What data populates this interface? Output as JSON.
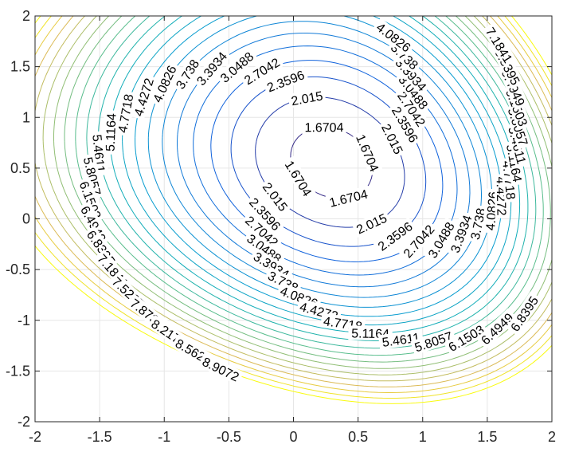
{
  "chart_data": {
    "type": "contour",
    "title": "",
    "xlabel": "",
    "ylabel": "",
    "xlim": [
      -2,
      2
    ],
    "ylim": [
      -2,
      2
    ],
    "x_ticks": [
      -2,
      -1.5,
      -1,
      -0.5,
      0,
      0.5,
      1,
      1.5,
      2
    ],
    "y_ticks": [
      -2,
      -1.5,
      -1,
      -0.5,
      0,
      0.5,
      1,
      1.5,
      2
    ],
    "x_tick_labels": [
      "-2",
      "-1.5",
      "-1",
      "-0.5",
      "0",
      "0.5",
      "1",
      "1.5",
      "2"
    ],
    "y_tick_labels": [
      "-2",
      "-1.5",
      "-1",
      "-0.5",
      "0",
      "0.5",
      "1",
      "1.5",
      "2"
    ],
    "grid": true,
    "colormap": "parula",
    "minimum_location": [
      0.3,
      0.55
    ],
    "levels": [
      1.6704,
      2.015,
      2.3596,
      2.7042,
      3.0488,
      3.3934,
      3.738,
      4.0826,
      4.4272,
      4.7718,
      5.1164,
      5.4611,
      5.8057,
      6.1503,
      6.4949,
      6.8395,
      7.1841,
      7.5287,
      7.8733,
      8.2179,
      8.5625,
      8.9072
    ],
    "level_labels": [
      "1.6704",
      "2.015",
      "2.3596",
      "2.7042",
      "3.0488",
      "3.3934",
      "3.738",
      "4.0826",
      "4.4272",
      "4.7718",
      "5.1164",
      "5.4611",
      "5.8057",
      "6.1503",
      "6.4949",
      "6.8395",
      "7.1841",
      "7.5287",
      "7.8733",
      "8.2179",
      "8.5625",
      "8.9072"
    ],
    "colors": {
      "low": "#352a87",
      "mid": "#1ab2b2",
      "high": "#f9fb0e",
      "grid": "#e6e6e6",
      "axis": "#262626"
    }
  }
}
